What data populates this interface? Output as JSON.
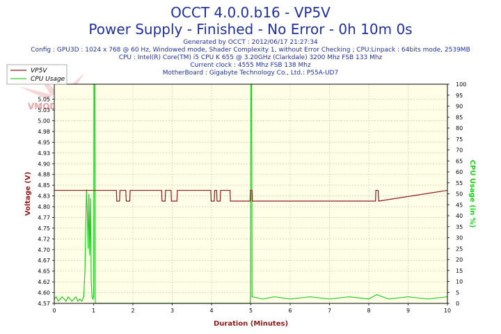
{
  "header": {
    "title": "OCCT 4.0.0.b16 - VP5V",
    "subtitle": "Power Supply - Finished - No Error - 0h 10m 0s",
    "generated": "Generated by OCCT : 2012/06/17 21:27:34",
    "config": "Config : GPU3D : 1024 x 768 @ 60 Hz, Windowed mode, Shader Complexity 1, without Error Checking ; CPU:Linpack : 64bits mode, 2539MB",
    "cpu": "CPU : Intel(R) Core(TM) i5 CPU K 655 @ 3.20GHz (Clarkdale) 3200 Mhz FSB 133 Mhz",
    "clock": "Current clock : 4555 Mhz FSB 138 Mhz",
    "motherboard": "MotherBoard : Gigabyte Technology Co., Ltd.: P55A-UD7"
  },
  "watermark": "VMODTECH.COM",
  "colors": {
    "title": "#1f2f9a",
    "plot_bg": "#ffffe8",
    "grid": "#c8c8b0",
    "vp5v": "#8b1a1a",
    "cpu": "#22cc22",
    "axis_left": "#8b1a1a",
    "axis_right": "#22cc22"
  },
  "chart_data": {
    "type": "line",
    "xlabel": "Duration (Minutes)",
    "ylabel": "Voltage (V)",
    "y2label": "CPU Usage (in %)",
    "xlim": [
      0,
      10
    ],
    "ylim": [
      4.57,
      5.08
    ],
    "y2lim": [
      0,
      100
    ],
    "x_ticks": [
      "0",
      "1",
      "2",
      "3",
      "4",
      "5",
      "6",
      "7",
      "8",
      "9",
      "10"
    ],
    "y_ticks": [
      "4.57",
      "4.60",
      "4.62",
      "4.65",
      "4.67",
      "4.70",
      "4.72",
      "4.75",
      "4.77",
      "4.80",
      "4.83",
      "4.85",
      "4.88",
      "4.90",
      "4.93",
      "4.95",
      "4.98",
      "5.00",
      "5.03",
      "5.05"
    ],
    "y_tick_values": [
      4.57,
      4.595,
      4.62,
      4.645,
      4.67,
      4.695,
      4.72,
      4.745,
      4.77,
      4.795,
      4.82,
      4.845,
      4.87,
      4.895,
      4.92,
      4.945,
      4.97,
      4.995,
      5.02,
      5.045
    ],
    "y2_ticks": [
      "0",
      "5",
      "10",
      "15",
      "20",
      "25",
      "30",
      "35",
      "40",
      "45",
      "50",
      "55",
      "60",
      "65",
      "70",
      "75",
      "80",
      "85",
      "90",
      "95",
      "100"
    ],
    "legend": [
      "VP5V",
      "CPU Usage"
    ],
    "legend_position": "top-left",
    "grid": true,
    "series": [
      {
        "name": "VP5V",
        "x": [
          0,
          1.58,
          1.59,
          1.66,
          1.67,
          1.82,
          1.83,
          1.92,
          1.93,
          2.73,
          2.74,
          2.82,
          2.83,
          2.97,
          2.98,
          3.12,
          3.13,
          3.98,
          3.99,
          4.07,
          4.08,
          4.13,
          4.14,
          4.22,
          4.23,
          4.47,
          4.48,
          4.98,
          4.99,
          5.03,
          5.04,
          8.17,
          8.18,
          8.24,
          8.25,
          10
        ],
        "values": [
          4.833,
          4.833,
          4.808,
          4.808,
          4.833,
          4.833,
          4.808,
          4.808,
          4.833,
          4.833,
          4.808,
          4.808,
          4.833,
          4.833,
          4.808,
          4.808,
          4.833,
          4.833,
          4.808,
          4.808,
          4.833,
          4.833,
          4.808,
          4.808,
          4.833,
          4.833,
          4.808,
          4.808,
          4.833,
          4.833,
          4.808,
          4.808,
          4.833,
          4.833,
          4.808,
          4.833
        ]
      },
      {
        "name": "CPU Usage",
        "x": [
          0,
          0.05,
          0.1,
          0.15,
          0.2,
          0.25,
          0.3,
          0.35,
          0.4,
          0.45,
          0.5,
          0.55,
          0.6,
          0.65,
          0.7,
          0.75,
          0.78,
          0.8,
          0.82,
          0.84,
          0.86,
          0.88,
          0.9,
          0.92,
          0.94,
          0.96,
          0.98,
          1.0,
          1.01,
          1.02,
          1.03,
          1.04,
          1.05,
          1.2,
          1.5,
          2.0,
          2.5,
          3.0,
          3.5,
          4.0,
          4.5,
          4.98,
          4.99,
          5.0,
          5.01,
          5.02,
          5.03,
          5.3,
          5.6,
          6.0,
          6.5,
          7.0,
          7.5,
          8.0,
          8.2,
          8.5,
          9.0,
          9.5,
          10
        ],
        "values": [
          2,
          3,
          1,
          2,
          3,
          2,
          1,
          3,
          2,
          1,
          2,
          3,
          1,
          2,
          1,
          3,
          15,
          35,
          52,
          42,
          25,
          50,
          22,
          48,
          10,
          3,
          2,
          3,
          100,
          100,
          100,
          2,
          0,
          0,
          0,
          0,
          0,
          0,
          0,
          0,
          0,
          0,
          3,
          100,
          100,
          100,
          3,
          2,
          3,
          2,
          3,
          2,
          3,
          2,
          4,
          2,
          3,
          2,
          3
        ]
      }
    ]
  }
}
